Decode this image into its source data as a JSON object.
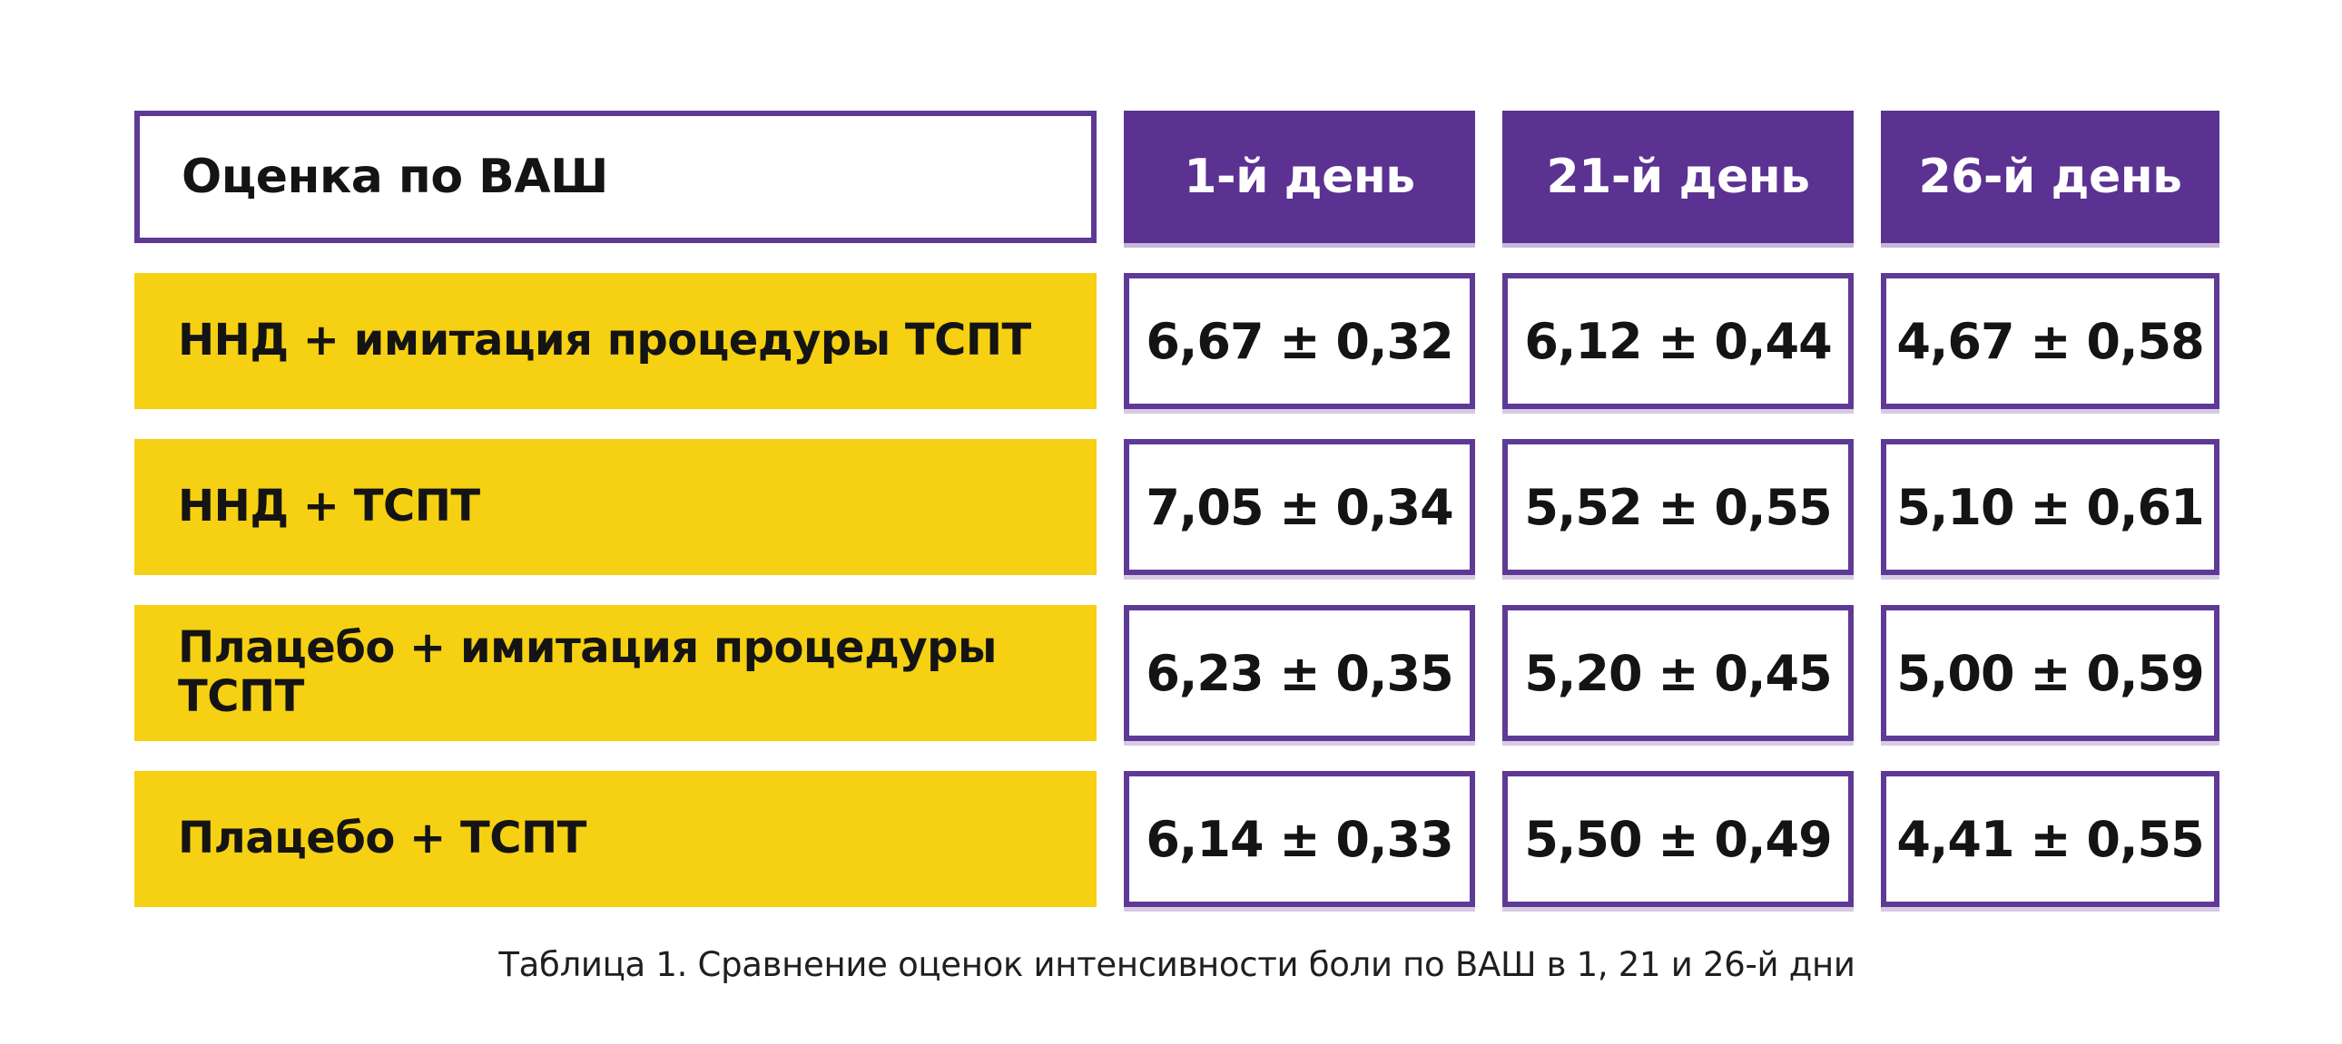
{
  "colors": {
    "header_purple": "#5b3191",
    "cell_border_purple": "#5e3a96",
    "row_label_yellow": "#f6d012",
    "text_black": "#141414",
    "text_white": "#ffffff",
    "background": "#ffffff"
  },
  "table": {
    "corner_label": "Оценка по ВАШ",
    "day_headers": [
      {
        "label": "1-й день"
      },
      {
        "label": "21-й день"
      },
      {
        "label": "26-й день"
      }
    ],
    "rows": [
      {
        "group": "ННД + имитация процедуры ТСПТ",
        "values": [
          "6,67 ± 0,32",
          "6,12 ± 0,44",
          "4,67 ± 0,58"
        ]
      },
      {
        "group": "ННД + ТСПТ",
        "values": [
          "7,05 ± 0,34",
          "5,52 ± 0,55",
          "5,10 ± 0,61"
        ]
      },
      {
        "group": "Плацебо + имитация процедуры ТСПТ",
        "values": [
          "6,23 ± 0,35",
          "5,20 ± 0,45",
          "5,00 ± 0,59"
        ]
      },
      {
        "group": "Плацебо + ТСПТ",
        "values": [
          "6,14 ± 0,33",
          "5,50 ± 0,49",
          "4,41 ± 0,55"
        ]
      }
    ]
  },
  "caption": "Таблица 1. Сравнение оценок интенсивности боли по ВАШ в 1, 21 и 26-й дни",
  "chart_data": {
    "type": "table",
    "title": "Таблица 1. Сравнение оценок интенсивности боли по ВАШ в 1, 21 и 26-й дни",
    "columns": [
      "Оценка по ВАШ",
      "1-й день",
      "21-й день",
      "26-й день"
    ],
    "rows": [
      [
        "ННД + имитация процедуры ТСПТ",
        "6,67 ± 0,32",
        "6,12 ± 0,44",
        "4,67 ± 0,58"
      ],
      [
        "ННД + ТСПТ",
        "7,05 ± 0,34",
        "5,52 ± 0,55",
        "5,10 ± 0,61"
      ],
      [
        "Плацебо + имитация процедуры ТСПТ",
        "6,23 ± 0,35",
        "5,20 ± 0,45",
        "5,00 ± 0,59"
      ],
      [
        "Плацебо + ТСПТ",
        "6,14 ± 0,33",
        "5,50 ± 0,49",
        "4,41 ± 0,55"
      ]
    ],
    "series": [
      {
        "name": "ННД + имитация процедуры ТСПТ",
        "mean": [
          6.67,
          6.12,
          4.67
        ],
        "sem": [
          0.32,
          0.44,
          0.58
        ]
      },
      {
        "name": "ННД + ТСПТ",
        "mean": [
          7.05,
          5.52,
          5.1
        ],
        "sem": [
          0.34,
          0.55,
          0.61
        ]
      },
      {
        "name": "Плацебо + имитация процедуры ТСПТ",
        "mean": [
          6.23,
          5.2,
          5.0
        ],
        "sem": [
          0.35,
          0.45,
          0.59
        ]
      },
      {
        "name": "Плацебо + ТСПТ",
        "mean": [
          6.14,
          5.5,
          4.41
        ],
        "sem": [
          0.33,
          0.49,
          0.55
        ]
      }
    ],
    "categories": [
      "1-й день",
      "21-й день",
      "26-й день"
    ],
    "value_format": "mean ± SEM, десятичная запятая"
  }
}
